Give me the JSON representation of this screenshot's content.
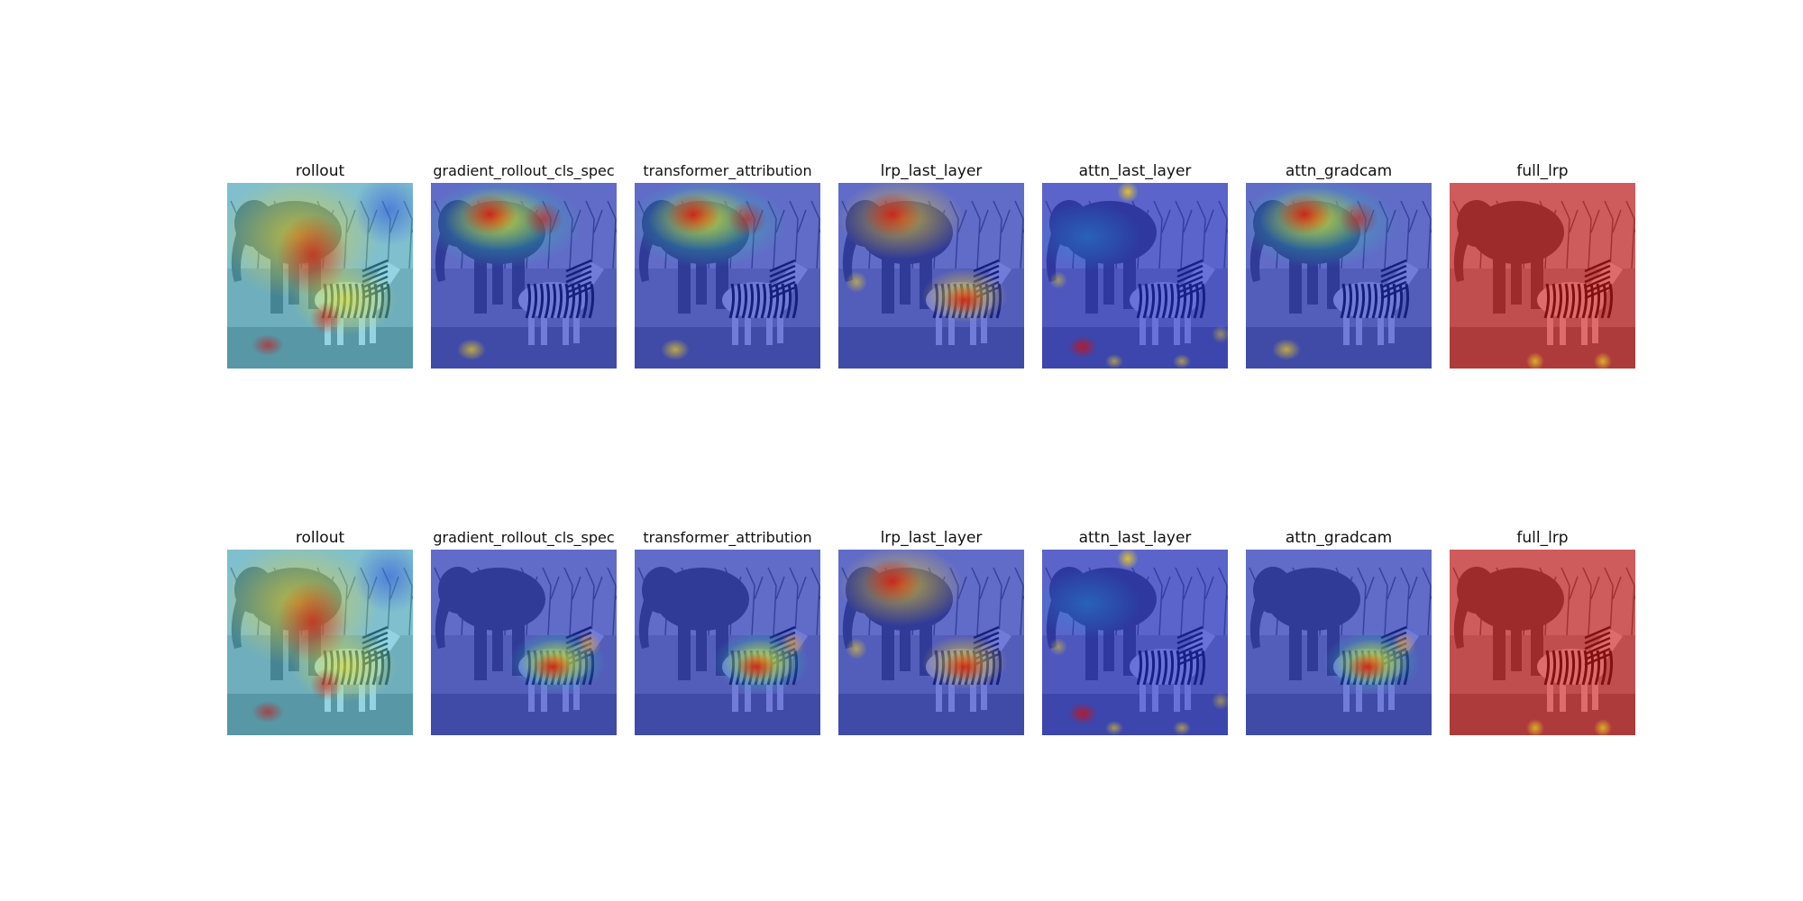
{
  "figure": {
    "rows": [
      {
        "panels": [
          {
            "title": "rollout",
            "style": "rollout"
          },
          {
            "title": "gradient_rollout_cls_spec",
            "style": "elephant_heat"
          },
          {
            "title": "transformer_attribution",
            "style": "elephant_heat"
          },
          {
            "title": "lrp_last_layer",
            "style": "lrp_both"
          },
          {
            "title": "attn_last_layer",
            "style": "attn_sparse"
          },
          {
            "title": "attn_gradcam",
            "style": "elephant_heat"
          },
          {
            "title": "full_lrp",
            "style": "full_red"
          }
        ]
      },
      {
        "panels": [
          {
            "title": "rollout",
            "style": "rollout"
          },
          {
            "title": "gradient_rollout_cls_spec",
            "style": "zebra_heat"
          },
          {
            "title": "transformer_attribution",
            "style": "zebra_heat"
          },
          {
            "title": "lrp_last_layer",
            "style": "lrp_both"
          },
          {
            "title": "attn_last_layer",
            "style": "attn_sparse"
          },
          {
            "title": "attn_gradcam",
            "style": "zebra_heat"
          },
          {
            "title": "full_lrp",
            "style": "full_red"
          }
        ]
      }
    ]
  }
}
